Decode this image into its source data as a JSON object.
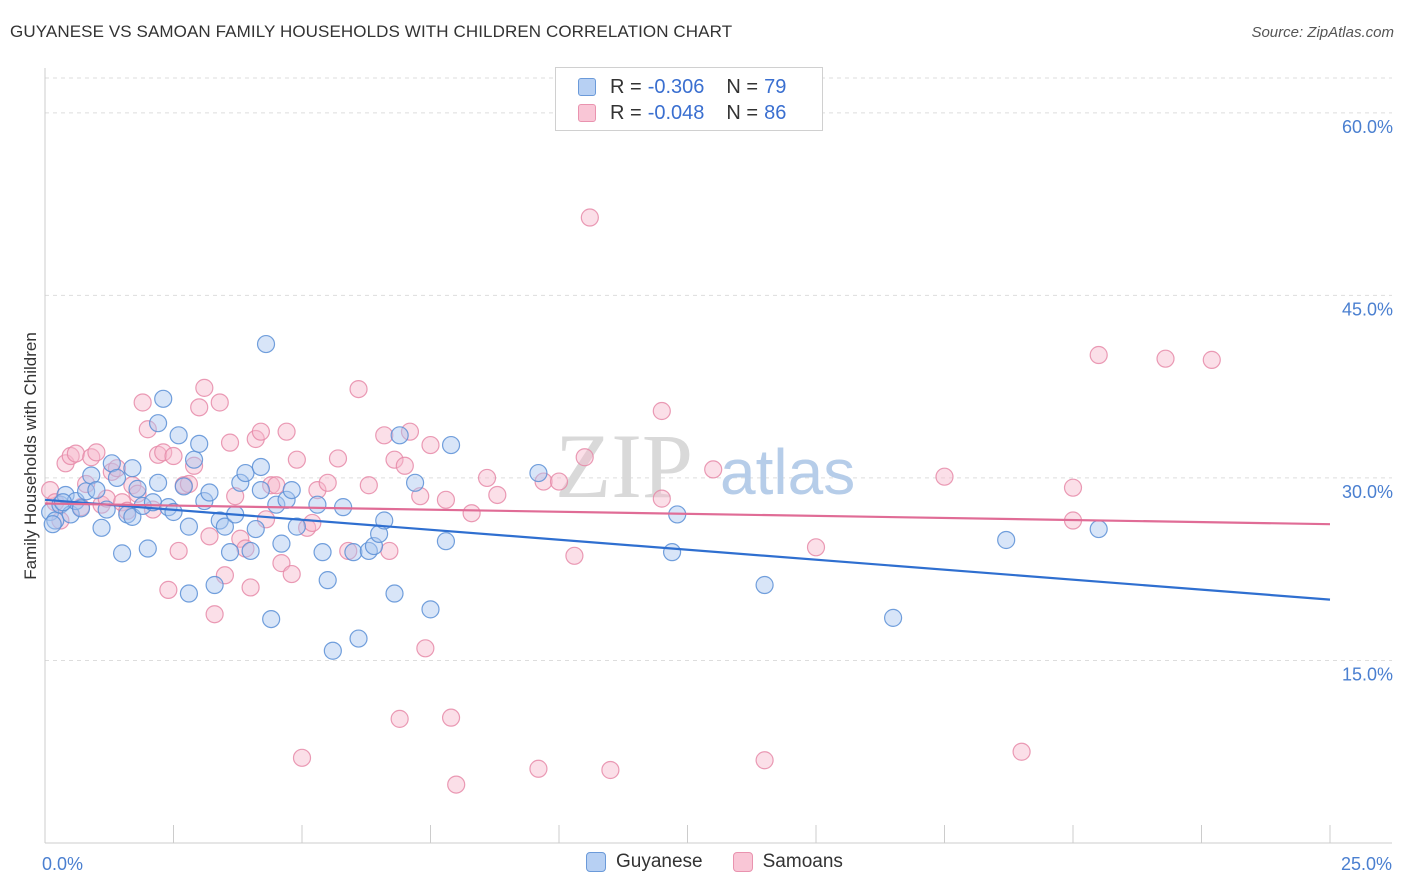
{
  "title": "GUYANESE VS SAMOAN FAMILY HOUSEHOLDS WITH CHILDREN CORRELATION CHART",
  "source": "Source: ZipAtlas.com",
  "watermark": {
    "zip": "ZIP",
    "atlas": "atlas"
  },
  "legend": {
    "r_label": "R =",
    "n_label": "N =",
    "entries": [
      {
        "r": "-0.306",
        "n": "79"
      },
      {
        "r": "-0.048",
        "n": "86"
      }
    ]
  },
  "colors": {
    "guyanese_fill": "#a9c6f0",
    "guyanese_stroke": "#5b8fd6",
    "guyanese_line": "#2f6fd0",
    "samoans_fill": "#f6b8cc",
    "samoans_stroke": "#e68aa8",
    "samoans_line": "#e06c96",
    "axis_text": "#4a7fd0"
  },
  "chart_data": {
    "type": "scatter",
    "xlabel": "",
    "ylabel": "Family Households with Children",
    "xlim": [
      0,
      25
    ],
    "ylim": [
      0,
      60
    ],
    "x_tick_labels": [
      {
        "value": 0,
        "label": "0.0%"
      },
      {
        "value": 25,
        "label": "25.0%"
      }
    ],
    "y_tick_labels": [
      {
        "value": 15,
        "label": "15.0%"
      },
      {
        "value": 30,
        "label": "30.0%"
      },
      {
        "value": 45,
        "label": "45.0%"
      },
      {
        "value": 60,
        "label": "60.0%"
      }
    ],
    "grid": "horizontal dashed",
    "legend_position": "top-center",
    "series": [
      {
        "name": "Guyanese",
        "trend": {
          "x": [
            0,
            25
          ],
          "y": [
            28.2,
            20.0
          ]
        },
        "points": [
          [
            0.1,
            27.2
          ],
          [
            0.2,
            26.5
          ],
          [
            0.3,
            27.8
          ],
          [
            0.4,
            28.6
          ],
          [
            0.5,
            27.0
          ],
          [
            0.6,
            28.1
          ],
          [
            0.7,
            27.5
          ],
          [
            0.8,
            28.9
          ],
          [
            0.9,
            30.2
          ],
          [
            1.0,
            29.0
          ],
          [
            1.1,
            25.9
          ],
          [
            1.2,
            27.4
          ],
          [
            1.3,
            31.2
          ],
          [
            1.4,
            30.0
          ],
          [
            1.5,
            23.8
          ],
          [
            1.6,
            27.0
          ],
          [
            1.7,
            26.8
          ],
          [
            1.7,
            30.8
          ],
          [
            1.8,
            29.1
          ],
          [
            1.9,
            27.7
          ],
          [
            2.0,
            24.2
          ],
          [
            2.1,
            28.0
          ],
          [
            2.2,
            29.6
          ],
          [
            2.2,
            34.5
          ],
          [
            2.3,
            36.5
          ],
          [
            2.4,
            27.6
          ],
          [
            2.5,
            27.2
          ],
          [
            2.6,
            33.5
          ],
          [
            2.7,
            29.3
          ],
          [
            2.8,
            26.0
          ],
          [
            2.8,
            20.5
          ],
          [
            2.9,
            31.5
          ],
          [
            3.0,
            32.8
          ],
          [
            3.1,
            28.1
          ],
          [
            3.2,
            28.8
          ],
          [
            3.3,
            21.2
          ],
          [
            3.4,
            26.5
          ],
          [
            3.5,
            26.0
          ],
          [
            3.6,
            23.9
          ],
          [
            3.7,
            27.0
          ],
          [
            3.8,
            29.6
          ],
          [
            3.9,
            30.4
          ],
          [
            4.0,
            24.0
          ],
          [
            4.1,
            25.8
          ],
          [
            4.2,
            29.0
          ],
          [
            4.2,
            30.9
          ],
          [
            4.3,
            41.0
          ],
          [
            4.4,
            18.4
          ],
          [
            4.5,
            27.8
          ],
          [
            4.6,
            24.6
          ],
          [
            4.7,
            28.2
          ],
          [
            4.8,
            29.0
          ],
          [
            4.9,
            26.0
          ],
          [
            5.3,
            27.8
          ],
          [
            5.4,
            23.9
          ],
          [
            5.5,
            21.6
          ],
          [
            5.6,
            15.8
          ],
          [
            5.8,
            27.6
          ],
          [
            6.0,
            23.9
          ],
          [
            6.1,
            16.8
          ],
          [
            6.3,
            24.0
          ],
          [
            6.4,
            24.4
          ],
          [
            6.5,
            25.4
          ],
          [
            6.6,
            26.5
          ],
          [
            6.8,
            20.5
          ],
          [
            6.9,
            33.5
          ],
          [
            7.2,
            29.6
          ],
          [
            7.5,
            19.2
          ],
          [
            7.8,
            24.8
          ],
          [
            7.9,
            32.7
          ],
          [
            9.6,
            30.4
          ],
          [
            12.2,
            23.9
          ],
          [
            12.3,
            27.0
          ],
          [
            14.0,
            21.2
          ],
          [
            16.5,
            18.5
          ],
          [
            18.7,
            24.9
          ],
          [
            20.5,
            25.8
          ],
          [
            0.15,
            26.2
          ],
          [
            0.35,
            28.0
          ]
        ]
      },
      {
        "name": "Samoans",
        "trend": {
          "x": [
            0,
            25
          ],
          "y": [
            27.9,
            26.2
          ]
        },
        "points": [
          [
            0.1,
            29.0
          ],
          [
            0.2,
            28.0
          ],
          [
            0.3,
            26.5
          ],
          [
            0.4,
            31.2
          ],
          [
            0.5,
            31.8
          ],
          [
            0.6,
            32.0
          ],
          [
            0.7,
            27.6
          ],
          [
            0.8,
            29.5
          ],
          [
            0.9,
            31.7
          ],
          [
            1.0,
            32.1
          ],
          [
            1.1,
            27.8
          ],
          [
            1.2,
            28.3
          ],
          [
            1.3,
            30.5
          ],
          [
            1.4,
            30.8
          ],
          [
            1.5,
            28.0
          ],
          [
            1.6,
            27.3
          ],
          [
            1.7,
            29.4
          ],
          [
            1.8,
            28.7
          ],
          [
            1.9,
            36.2
          ],
          [
            2.0,
            34.0
          ],
          [
            2.1,
            27.4
          ],
          [
            2.2,
            31.9
          ],
          [
            2.3,
            32.1
          ],
          [
            2.4,
            20.8
          ],
          [
            2.5,
            31.8
          ],
          [
            2.6,
            24.0
          ],
          [
            2.7,
            29.4
          ],
          [
            2.8,
            29.5
          ],
          [
            2.9,
            31.0
          ],
          [
            3.0,
            35.8
          ],
          [
            3.1,
            37.4
          ],
          [
            3.2,
            25.2
          ],
          [
            3.3,
            18.8
          ],
          [
            3.4,
            36.2
          ],
          [
            3.5,
            22.0
          ],
          [
            3.6,
            32.9
          ],
          [
            3.7,
            28.5
          ],
          [
            3.8,
            25.0
          ],
          [
            3.9,
            24.2
          ],
          [
            4.0,
            21.0
          ],
          [
            4.1,
            33.2
          ],
          [
            4.2,
            33.8
          ],
          [
            4.3,
            26.6
          ],
          [
            4.4,
            29.4
          ],
          [
            4.5,
            29.4
          ],
          [
            4.6,
            23.0
          ],
          [
            4.7,
            33.8
          ],
          [
            4.8,
            22.1
          ],
          [
            4.9,
            31.5
          ],
          [
            5.0,
            7.0
          ],
          [
            5.1,
            25.9
          ],
          [
            5.2,
            26.3
          ],
          [
            5.3,
            29.0
          ],
          [
            5.5,
            29.6
          ],
          [
            5.7,
            31.6
          ],
          [
            5.9,
            24.0
          ],
          [
            6.1,
            37.3
          ],
          [
            6.3,
            29.4
          ],
          [
            6.6,
            33.5
          ],
          [
            6.7,
            24.0
          ],
          [
            6.8,
            31.5
          ],
          [
            6.9,
            10.2
          ],
          [
            7.0,
            31.0
          ],
          [
            7.1,
            33.8
          ],
          [
            7.3,
            28.5
          ],
          [
            7.4,
            16.0
          ],
          [
            7.5,
            32.7
          ],
          [
            7.8,
            28.2
          ],
          [
            7.9,
            10.3
          ],
          [
            8.0,
            4.8
          ],
          [
            8.3,
            27.1
          ],
          [
            8.6,
            30.0
          ],
          [
            8.8,
            28.6
          ],
          [
            9.6,
            6.1
          ],
          [
            9.7,
            29.7
          ],
          [
            10.0,
            29.7
          ],
          [
            10.3,
            23.6
          ],
          [
            10.6,
            51.4
          ],
          [
            11.0,
            6.0
          ],
          [
            12.0,
            35.5
          ],
          [
            13.0,
            30.7
          ],
          [
            14.0,
            6.8
          ],
          [
            15.0,
            24.3
          ],
          [
            17.5,
            30.1
          ],
          [
            19.0,
            7.5
          ],
          [
            20.0,
            26.5
          ]
        ]
      }
    ],
    "extra_samoan_points": [
      [
        20.0,
        29.2
      ],
      [
        20.5,
        40.1
      ],
      [
        21.8,
        39.8
      ],
      [
        22.7,
        39.7
      ],
      [
        12.0,
        28.3
      ],
      [
        10.5,
        31.7
      ]
    ]
  },
  "bottom_legend": [
    "Guyanese",
    "Samoans"
  ]
}
